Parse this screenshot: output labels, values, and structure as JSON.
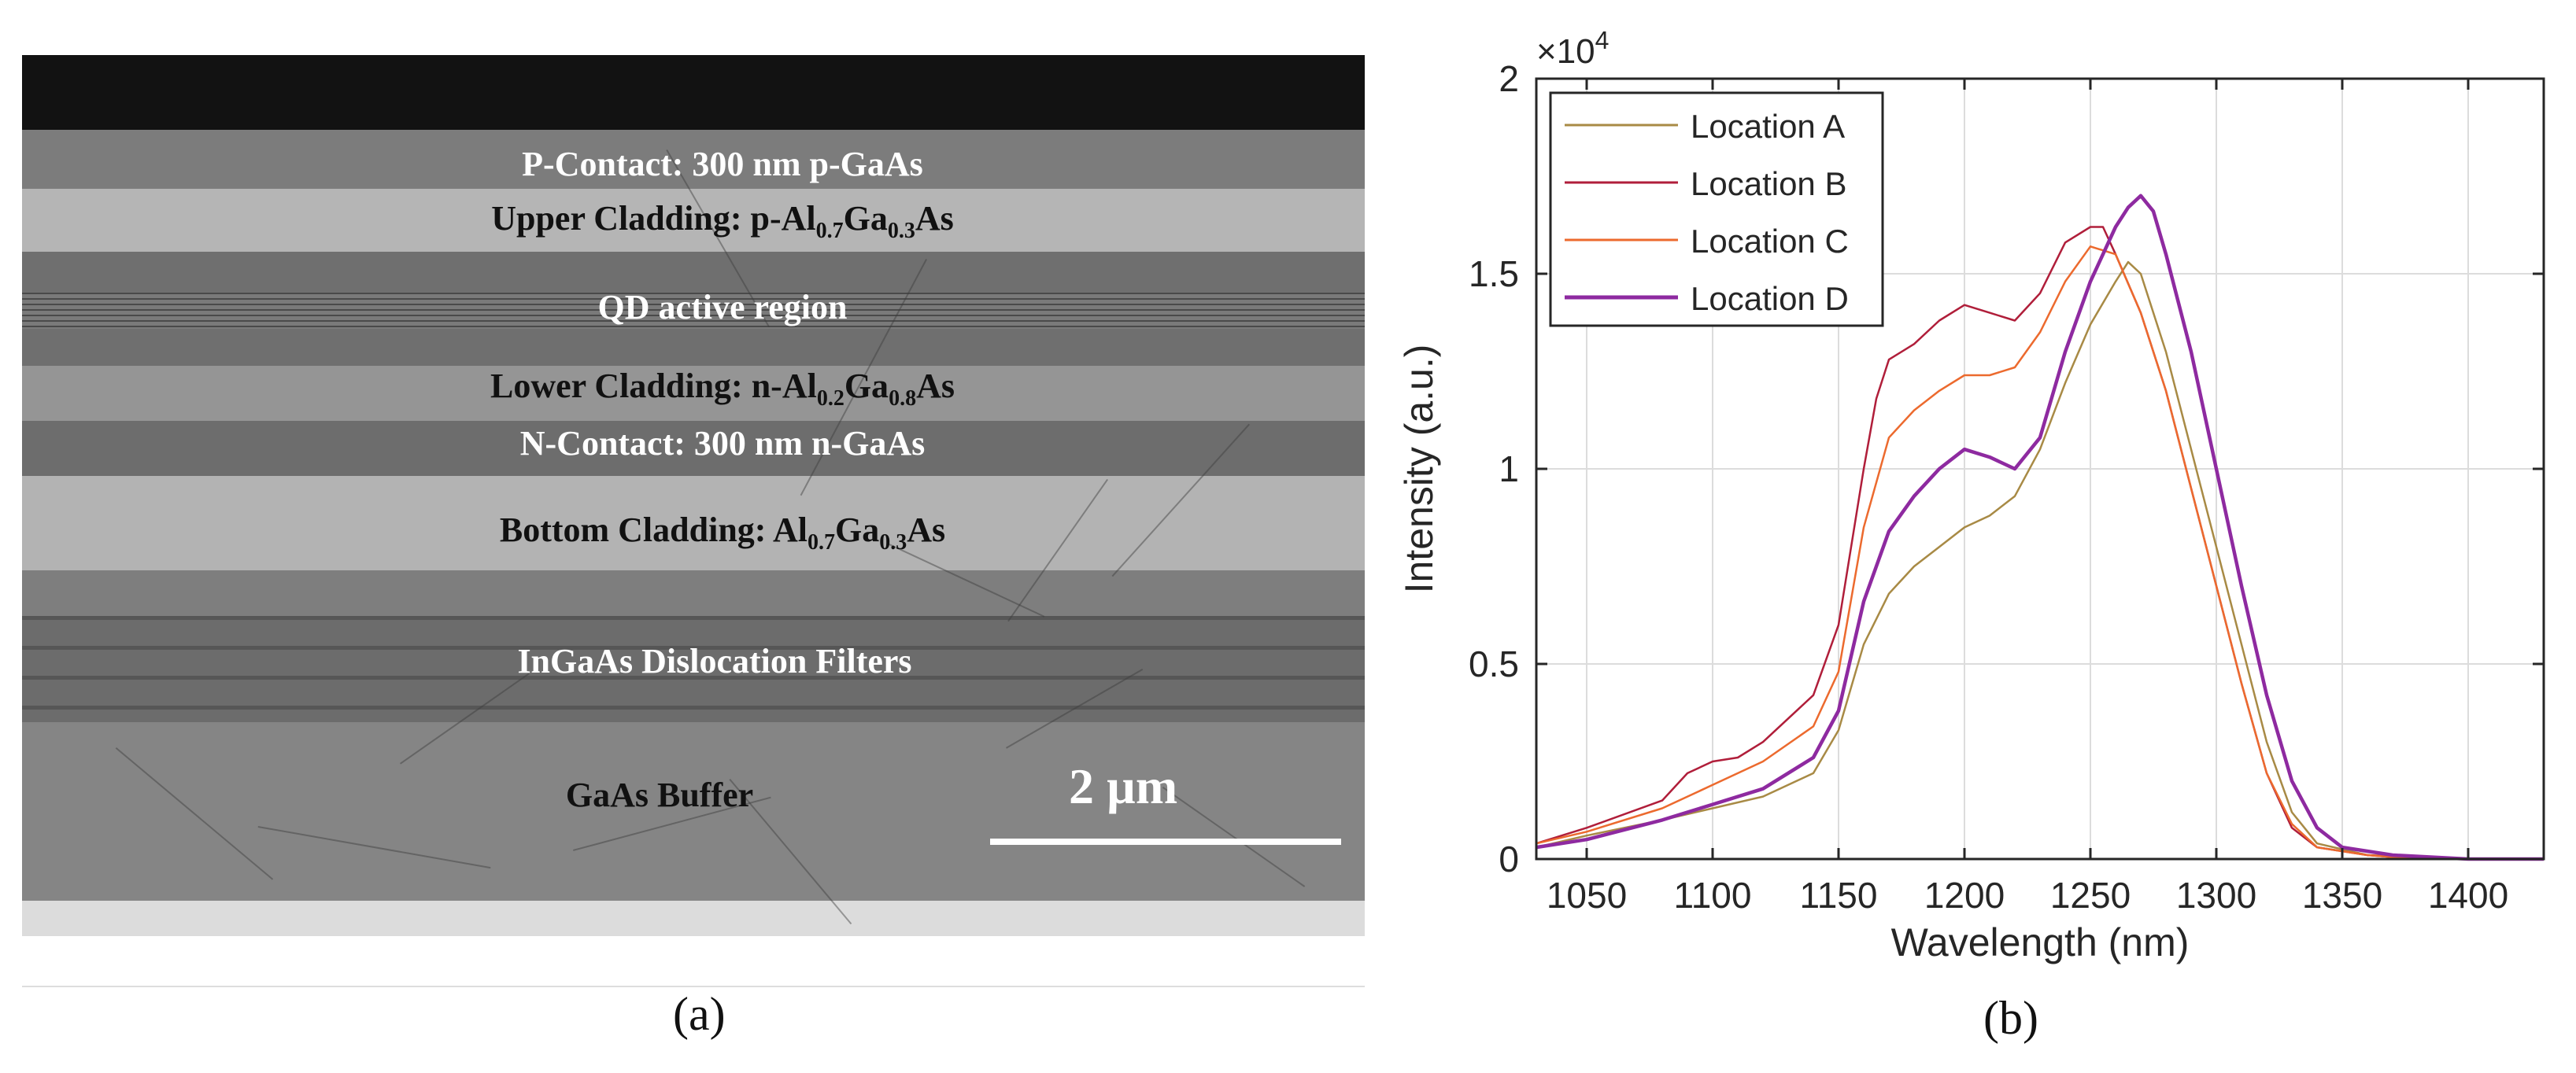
{
  "panel_a": {
    "caption": "(a)",
    "scale_bar_label": "2 µm",
    "layers": {
      "p_contact": "P-Contact: 300 nm p-GaAs",
      "upper_cladding": {
        "pre": "Upper Cladding: p-Al",
        "s1": "0.7",
        "mid": "Ga",
        "s2": "0.3",
        "post": "As"
      },
      "qd_region": "QD active region",
      "lower_cladding": {
        "pre": "Lower Cladding: n-Al",
        "s1": "0.2",
        "mid": "Ga",
        "s2": "0.8",
        "post": "As"
      },
      "n_contact": "N-Contact: 300 nm n-GaAs",
      "bottom_cladding": {
        "pre": "Bottom Cladding: Al",
        "s1": "0.7",
        "mid": "Ga",
        "s2": "0.3",
        "post": "As"
      },
      "filters": "InGaAs Dislocation Filters",
      "buffer": "GaAs Buffer"
    }
  },
  "panel_b": {
    "caption": "(b)"
  },
  "chart_data": {
    "type": "line",
    "xlabel": "Wavelength (nm)",
    "ylabel": "Intensity (a.u.)",
    "y_exponent": "×10",
    "y_exponent_power": "4",
    "xlim": [
      1030,
      1430
    ],
    "ylim": [
      0,
      2
    ],
    "xticks": [
      1050,
      1100,
      1150,
      1200,
      1250,
      1300,
      1350,
      1400
    ],
    "xtick_labels": [
      "1050",
      "1100",
      "1150",
      "1200",
      "1250",
      "1300",
      "1350",
      "1400"
    ],
    "yticks": [
      0,
      0.5,
      1,
      1.5,
      2
    ],
    "ytick_labels": [
      "0",
      "0.5",
      "1",
      "1.5",
      "2"
    ],
    "grid": true,
    "legend_position": "top-left",
    "series": [
      {
        "name": "Location A",
        "color": "#a88a45",
        "width": 2.5,
        "x": [
          1030,
          1050,
          1080,
          1100,
          1120,
          1140,
          1150,
          1160,
          1170,
          1180,
          1190,
          1200,
          1210,
          1220,
          1230,
          1240,
          1250,
          1260,
          1265,
          1270,
          1280,
          1290,
          1300,
          1310,
          1320,
          1330,
          1340,
          1360,
          1380,
          1400,
          1430
        ],
        "y": [
          0.03,
          0.06,
          0.1,
          0.13,
          0.16,
          0.22,
          0.33,
          0.55,
          0.68,
          0.75,
          0.8,
          0.85,
          0.88,
          0.93,
          1.05,
          1.22,
          1.37,
          1.48,
          1.53,
          1.5,
          1.3,
          1.05,
          0.8,
          0.55,
          0.3,
          0.12,
          0.04,
          0.01,
          0.005,
          0,
          0
        ]
      },
      {
        "name": "Location B",
        "color": "#b01e3a",
        "width": 2.5,
        "x": [
          1030,
          1050,
          1080,
          1090,
          1100,
          1110,
          1120,
          1140,
          1150,
          1160,
          1165,
          1170,
          1180,
          1190,
          1200,
          1210,
          1220,
          1230,
          1240,
          1250,
          1255,
          1260,
          1270,
          1280,
          1290,
          1300,
          1310,
          1320,
          1330,
          1340,
          1360,
          1380,
          1400,
          1430
        ],
        "y": [
          0.04,
          0.08,
          0.15,
          0.22,
          0.25,
          0.26,
          0.3,
          0.42,
          0.6,
          1.0,
          1.18,
          1.28,
          1.32,
          1.38,
          1.42,
          1.4,
          1.38,
          1.45,
          1.58,
          1.62,
          1.62,
          1.55,
          1.4,
          1.2,
          0.95,
          0.7,
          0.45,
          0.22,
          0.08,
          0.03,
          0.01,
          0,
          0,
          0
        ]
      },
      {
        "name": "Location C",
        "color": "#ec6a2e",
        "width": 2.5,
        "x": [
          1030,
          1050,
          1080,
          1100,
          1120,
          1140,
          1150,
          1160,
          1170,
          1180,
          1190,
          1200,
          1210,
          1220,
          1230,
          1240,
          1250,
          1260,
          1270,
          1280,
          1290,
          1300,
          1310,
          1320,
          1330,
          1340,
          1360,
          1380,
          1400,
          1430
        ],
        "y": [
          0.04,
          0.07,
          0.13,
          0.19,
          0.25,
          0.34,
          0.48,
          0.85,
          1.08,
          1.15,
          1.2,
          1.24,
          1.24,
          1.26,
          1.35,
          1.48,
          1.57,
          1.55,
          1.4,
          1.2,
          0.95,
          0.7,
          0.45,
          0.22,
          0.09,
          0.03,
          0.01,
          0,
          0,
          0
        ]
      },
      {
        "name": "Location D",
        "color": "#8e2aa0",
        "width": 4.5,
        "x": [
          1030,
          1050,
          1080,
          1100,
          1120,
          1140,
          1150,
          1160,
          1170,
          1180,
          1190,
          1200,
          1210,
          1220,
          1230,
          1240,
          1250,
          1260,
          1265,
          1270,
          1275,
          1280,
          1290,
          1300,
          1310,
          1320,
          1330,
          1340,
          1350,
          1370,
          1400,
          1430
        ],
        "y": [
          0.03,
          0.05,
          0.1,
          0.14,
          0.18,
          0.26,
          0.38,
          0.66,
          0.84,
          0.93,
          1.0,
          1.05,
          1.03,
          1.0,
          1.08,
          1.3,
          1.48,
          1.62,
          1.67,
          1.7,
          1.66,
          1.55,
          1.3,
          1.0,
          0.7,
          0.42,
          0.2,
          0.08,
          0.03,
          0.01,
          0,
          0
        ]
      }
    ]
  }
}
